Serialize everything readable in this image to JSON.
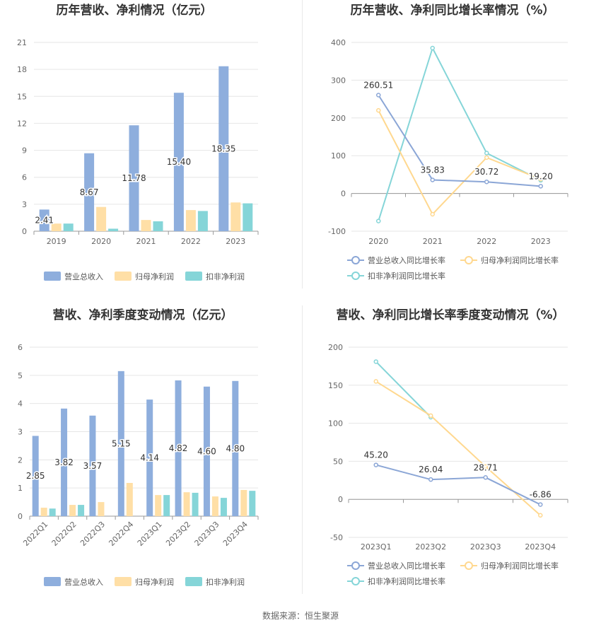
{
  "source": "数据来源：恒生聚源",
  "colors": {
    "revenue": "#8eaedd",
    "net_profit": "#ffdfa6",
    "deducted": "#85d5d8",
    "grid": "#e6e6e6",
    "axis": "#999999"
  },
  "legend_bar": [
    "营业总收入",
    "归母净利润",
    "扣非净利润"
  ],
  "legend_line": [
    "营业总收入同比增长率",
    "归母净利润同比增长率",
    "扣非净利润同比增长率"
  ],
  "chart_data": [
    {
      "id": "annual_amounts",
      "type": "bar",
      "title": "历年营收、净利情况（亿元）",
      "categories": [
        "2019",
        "2020",
        "2021",
        "2022",
        "2023"
      ],
      "ylim": [
        0,
        21
      ],
      "yticks": [
        0,
        3,
        6,
        9,
        12,
        15,
        18,
        21
      ],
      "series": [
        {
          "name": "营业总收入",
          "values": [
            2.41,
            8.67,
            11.78,
            15.4,
            18.35
          ],
          "labels": [
            "2.41",
            "8.67",
            "11.78",
            "15.40",
            "18.35"
          ]
        },
        {
          "name": "归母净利润",
          "values": [
            0.85,
            2.7,
            1.25,
            2.35,
            3.2
          ]
        },
        {
          "name": "扣非净利润",
          "values": [
            0.85,
            0.28,
            1.1,
            2.25,
            3.1
          ]
        }
      ],
      "grid": true,
      "legend": "bottom"
    },
    {
      "id": "annual_growth",
      "type": "line",
      "title": "历年营收、净利同比增长率情况（%）",
      "categories": [
        "2020",
        "2021",
        "2022",
        "2023"
      ],
      "ylim": [
        -100,
        400
      ],
      "yticks": [
        -100,
        0,
        100,
        200,
        300,
        400
      ],
      "series": [
        {
          "name": "营业总收入同比增长率",
          "values": [
            260.51,
            35.83,
            30.72,
            19.2
          ],
          "labels": [
            "260.51",
            "35.83",
            "30.72",
            "19.20"
          ]
        },
        {
          "name": "归母净利润同比增长率",
          "values": [
            220,
            -55,
            95,
            38
          ]
        },
        {
          "name": "扣非净利润同比增长率",
          "values": [
            -73,
            385,
            107,
            35
          ]
        }
      ],
      "grid": true,
      "legend": "bottom"
    },
    {
      "id": "quarterly_amounts",
      "type": "bar",
      "title": "营收、净利季度变动情况（亿元）",
      "categories": [
        "2022Q1",
        "2022Q2",
        "2022Q3",
        "2022Q4",
        "2023Q1",
        "2023Q2",
        "2023Q3",
        "2023Q4"
      ],
      "ylim": [
        0,
        6
      ],
      "yticks": [
        0,
        1,
        2,
        3,
        4,
        5,
        6
      ],
      "series": [
        {
          "name": "营业总收入",
          "values": [
            2.85,
            3.82,
            3.57,
            5.15,
            4.14,
            4.82,
            4.6,
            4.8
          ],
          "labels": [
            "2.85",
            "3.82",
            "3.57",
            "5.15",
            "4.14",
            "4.82",
            "4.60",
            "4.80"
          ]
        },
        {
          "name": "归母净利润",
          "values": [
            0.3,
            0.4,
            0.5,
            1.18,
            0.75,
            0.85,
            0.7,
            0.93
          ]
        },
        {
          "name": "扣非净利润",
          "values": [
            0.27,
            0.4,
            0.0,
            0.0,
            0.75,
            0.83,
            0.65,
            0.9
          ]
        }
      ],
      "grid": true,
      "legend": "bottom"
    },
    {
      "id": "quarterly_growth",
      "type": "line",
      "title": "营收、净利同比增长率季度变动情况（%）",
      "categories": [
        "2023Q1",
        "2023Q2",
        "2023Q3",
        "2023Q4"
      ],
      "ylim": [
        -50,
        200
      ],
      "yticks": [
        -50,
        0,
        50,
        100,
        150,
        200
      ],
      "series": [
        {
          "name": "营业总收入同比增长率",
          "values": [
            45.2,
            26.04,
            28.71,
            -6.86
          ],
          "labels": [
            "45.20",
            "26.04",
            "28.71",
            "-6.86"
          ]
        },
        {
          "name": "归母净利润同比增长率",
          "values": [
            155,
            110,
            43,
            -21
          ]
        },
        {
          "name": "扣非净利润同比增长率",
          "values": [
            181,
            108,
            null,
            null
          ]
        }
      ],
      "grid": true,
      "legend": "bottom"
    }
  ]
}
